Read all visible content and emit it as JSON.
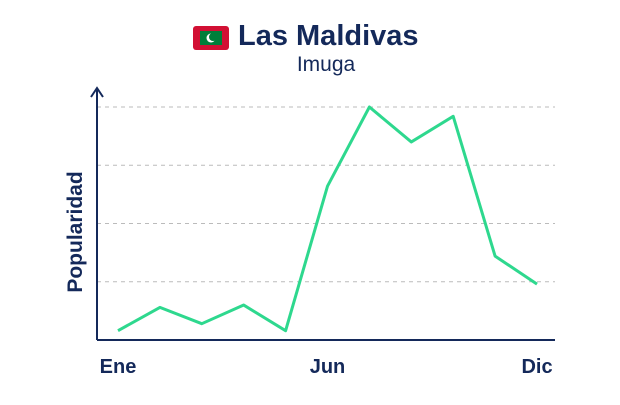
{
  "chart_data": {
    "type": "line",
    "title": "Las Maldivas",
    "subtitle": "Imuga",
    "y_label": "Popularidad",
    "categories": [
      "Ene",
      null,
      null,
      null,
      null,
      "Jun",
      null,
      null,
      null,
      null,
      "Dic"
    ],
    "values": [
      4,
      14,
      7,
      15,
      4,
      66,
      100,
      85,
      96,
      36,
      24
    ],
    "color": "#2ed88e",
    "ylim": [
      0,
      100
    ],
    "yticks": [
      25,
      50,
      75,
      100
    ],
    "grid": true
  }
}
